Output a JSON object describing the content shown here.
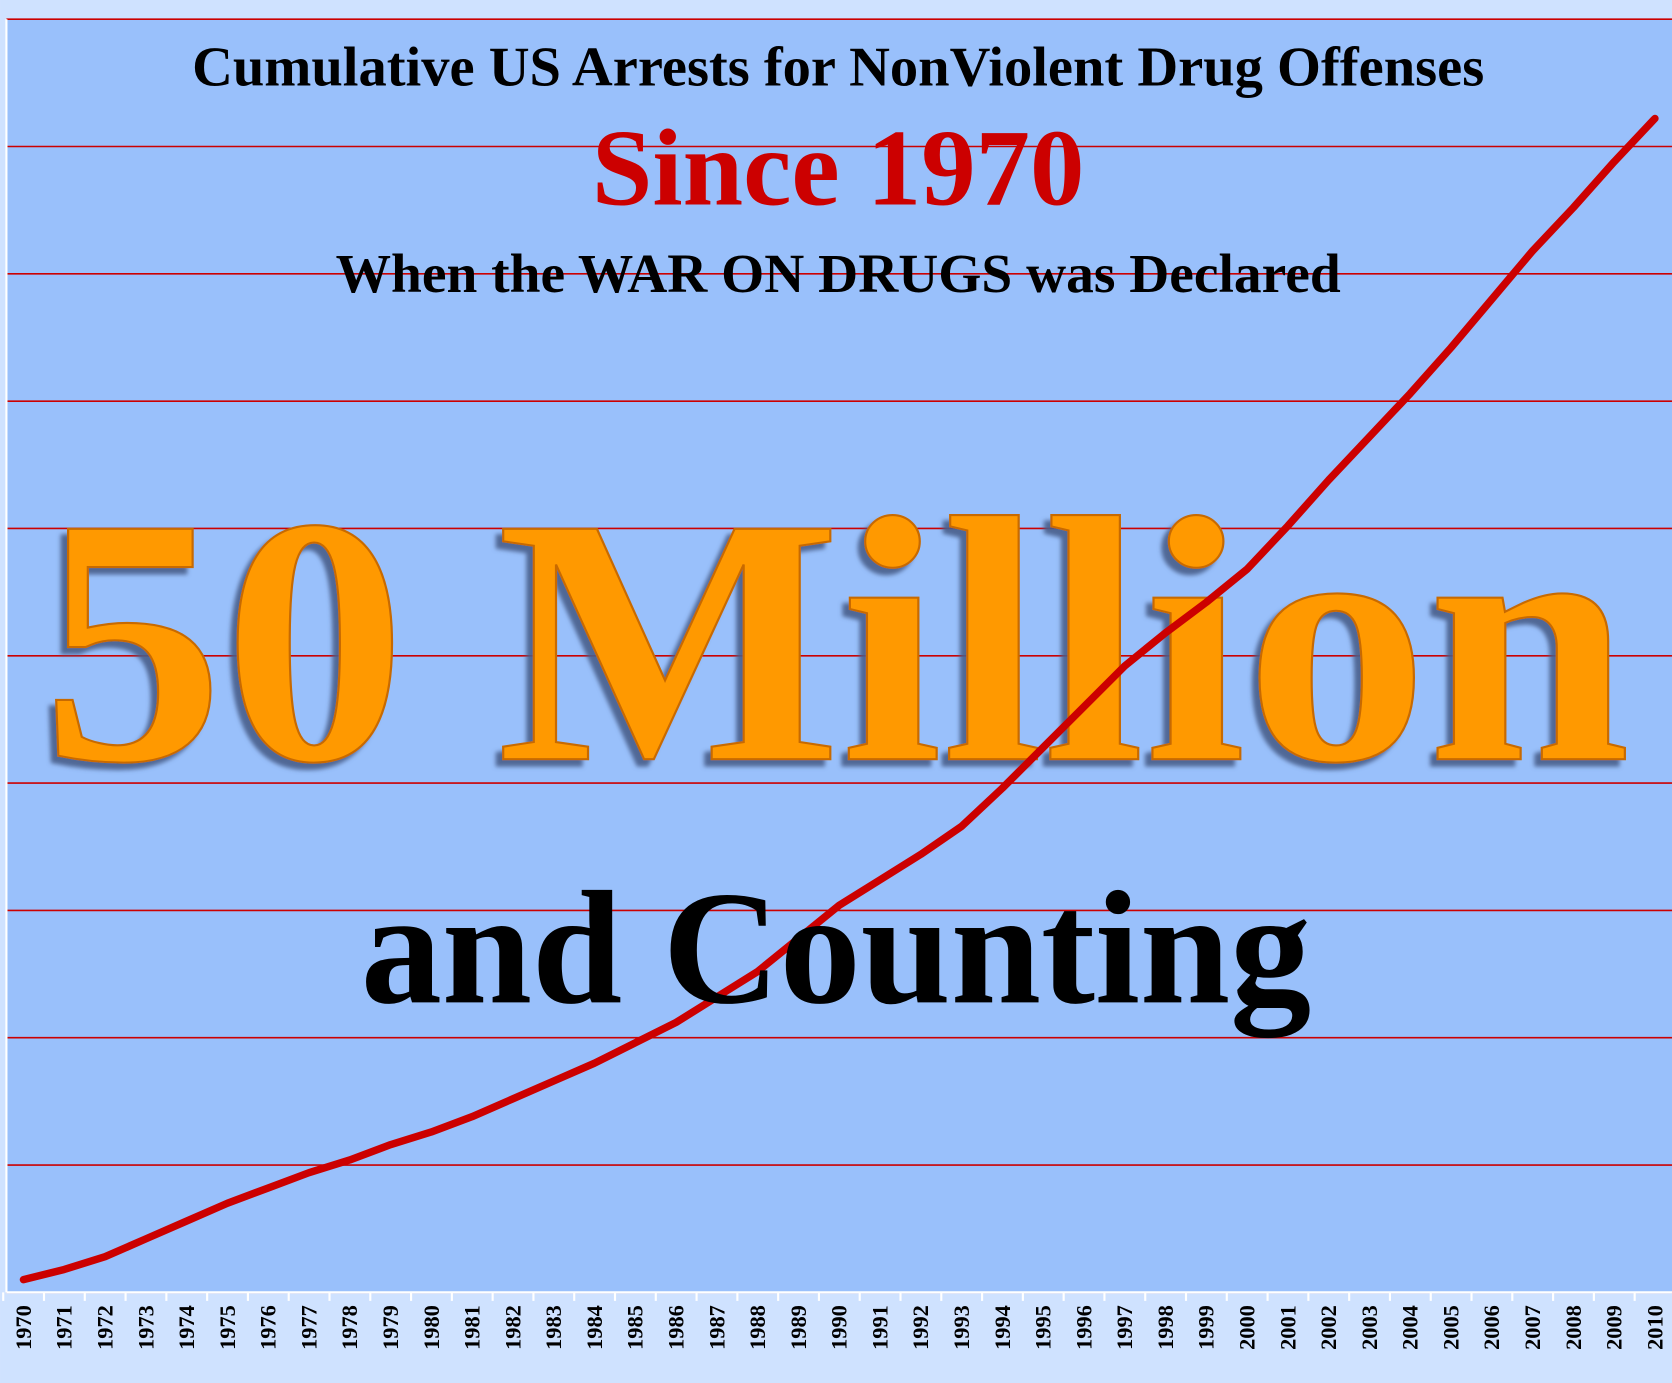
{
  "chart_data": {
    "type": "line",
    "title": "Cumulative US Arrests for NonViolent Drug Offenses",
    "subtitle": "Since 1970",
    "annotations": [
      "When the WAR ON DRUGS was Declared",
      "50 Million",
      "and Counting"
    ],
    "categories": [
      "1970",
      "1971",
      "1972",
      "1973",
      "1974",
      "1975",
      "1976",
      "1977",
      "1978",
      "1979",
      "1980",
      "1981",
      "1982",
      "1983",
      "1984",
      "1985",
      "1986",
      "1987",
      "1988",
      "1989",
      "1990",
      "1991",
      "1992",
      "1993",
      "1994",
      "1995",
      "1996",
      "1997",
      "1998",
      "1999",
      "2000",
      "2001",
      "2002",
      "2003",
      "2004",
      "2005",
      "2006",
      "2007",
      "2008",
      "2009",
      "2010"
    ],
    "values": [
      0.5,
      0.9,
      1.4,
      2.1,
      2.8,
      3.5,
      4.1,
      4.7,
      5.2,
      5.8,
      6.3,
      6.9,
      7.6,
      8.3,
      9.0,
      9.8,
      10.6,
      11.6,
      12.6,
      13.9,
      15.2,
      16.2,
      17.2,
      18.3,
      19.8,
      21.4,
      23.0,
      24.6,
      25.9,
      27.1,
      28.4,
      30.1,
      31.9,
      33.6,
      35.3,
      37.1,
      39.0,
      40.9,
      42.6,
      44.4,
      46.1
    ],
    "color": "#cc0000",
    "ylim": [
      0,
      50
    ],
    "yticks": [
      0,
      5,
      10,
      15,
      20,
      25,
      30,
      35,
      40,
      45,
      50
    ],
    "grid": true,
    "grid_color": "#cc0000"
  }
}
